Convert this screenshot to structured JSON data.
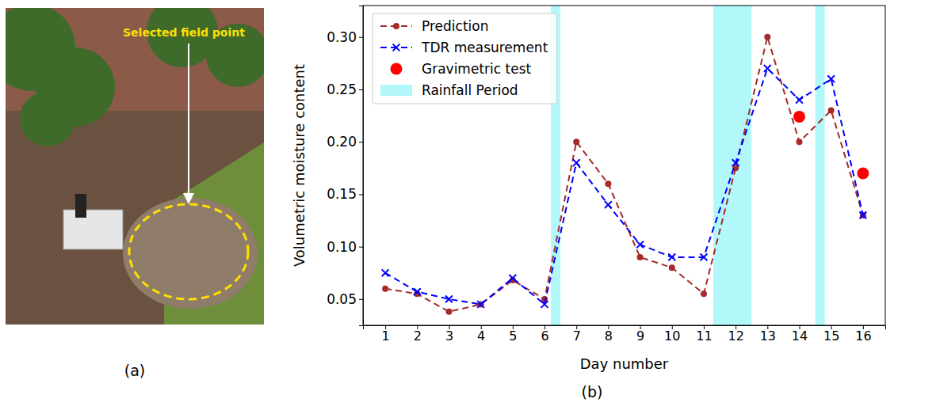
{
  "panel_labels": [
    "(a)",
    "(b)"
  ],
  "photo": {
    "annotation": "Selected field point"
  },
  "chart_data": {
    "type": "line",
    "x_label": "Day number",
    "y_label": "Volumetric moisture content",
    "x": [
      1,
      2,
      3,
      4,
      5,
      6,
      7,
      8,
      9,
      10,
      11,
      12,
      13,
      14,
      15,
      16
    ],
    "xlim": [
      0.3,
      16.7
    ],
    "xticks": [
      1,
      2,
      3,
      4,
      5,
      6,
      7,
      8,
      9,
      10,
      11,
      12,
      13,
      14,
      15,
      16
    ],
    "ylim": [
      0.025,
      0.33
    ],
    "yticks": [
      {
        "value": 0.05,
        "label": "0.05"
      },
      {
        "value": 0.1,
        "label": "0.10"
      },
      {
        "value": 0.15,
        "label": "0.15"
      },
      {
        "value": 0.2,
        "label": "0.20"
      },
      {
        "value": 0.25,
        "label": "0.25"
      },
      {
        "value": 0.3,
        "label": "0.30"
      }
    ],
    "legend": "upper left",
    "series": [
      {
        "name": "Prediction",
        "color": "#a52a2a",
        "marker": "circle",
        "line_style": "dashed",
        "values": [
          0.06,
          0.055,
          0.038,
          0.045,
          0.068,
          0.05,
          0.2,
          0.16,
          0.09,
          0.08,
          0.055,
          0.175,
          0.3,
          0.2,
          0.23,
          0.13
        ]
      },
      {
        "name": "TDR measurement",
        "color": "#0000ff",
        "marker": "x",
        "line_style": "dashed",
        "values": [
          0.075,
          0.057,
          0.05,
          0.045,
          0.07,
          0.045,
          0.18,
          0.14,
          0.102,
          0.09,
          0.09,
          0.18,
          0.27,
          0.24,
          0.26,
          0.13
        ]
      },
      {
        "name": "Gravimetric test",
        "color": "#ff0000",
        "marker": "circle",
        "type": "scatter",
        "values": [
          null,
          null,
          null,
          null,
          null,
          null,
          null,
          null,
          null,
          null,
          null,
          null,
          null,
          0.224,
          null,
          0.17
        ]
      },
      {
        "name": "Rainfall Period",
        "color": "#00e5ee",
        "type": "span",
        "spans": [
          [
            6.2,
            6.5
          ],
          [
            11.3,
            12.5
          ],
          [
            14.5,
            14.8
          ]
        ]
      }
    ]
  }
}
